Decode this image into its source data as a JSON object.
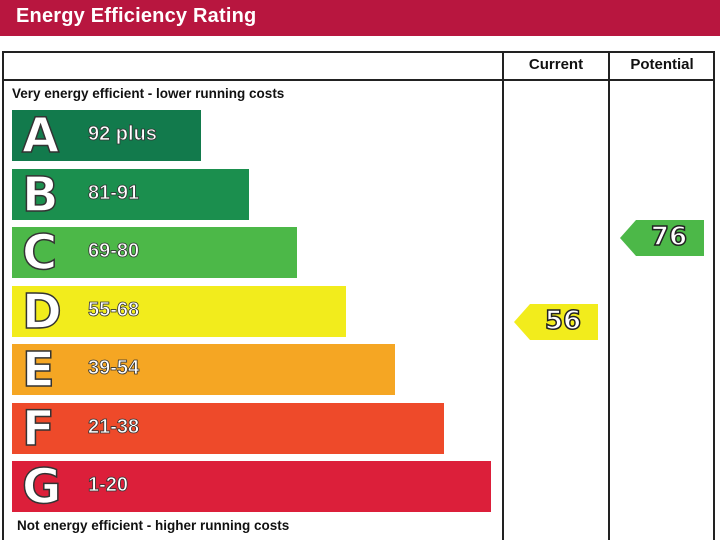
{
  "header": {
    "title": "Energy Efficiency Rating"
  },
  "table": {
    "col_current": "Current",
    "col_potential": "Potential",
    "top_note": "Very energy efficient - lower running costs",
    "bottom_note": "Not energy efficient - higher running costs"
  },
  "colors": {
    "title_bar": "#b8163f",
    "A": "#127a4c",
    "B": "#1b8f4e",
    "C": "#4cb848",
    "D": "#f2ec1c",
    "E": "#f5a623",
    "F": "#ee4a2a",
    "G": "#dc1f3a"
  },
  "chart_data": {
    "type": "bar",
    "categories": [
      "A",
      "B",
      "C",
      "D",
      "E",
      "F",
      "G"
    ],
    "ranges": [
      "92 plus",
      "81-91",
      "69-80",
      "55-68",
      "39-54",
      "21-38",
      "1-20"
    ],
    "current": {
      "value": "56",
      "band": "D"
    },
    "potential": {
      "value": "76",
      "band": "C"
    }
  }
}
